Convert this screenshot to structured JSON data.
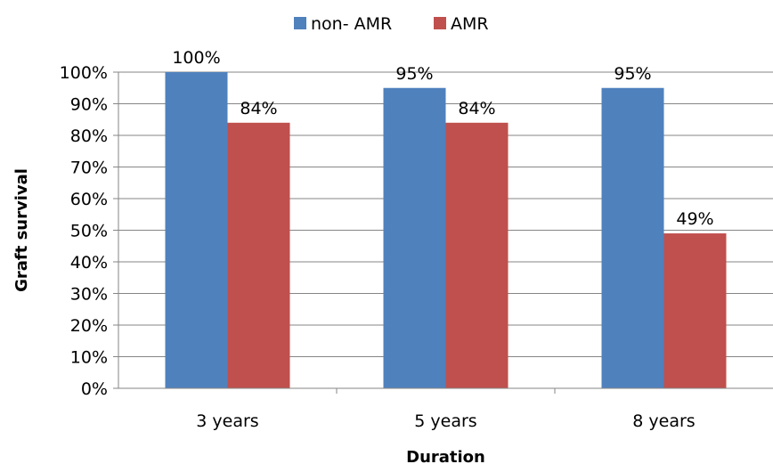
{
  "chart_data": {
    "type": "bar",
    "categories": [
      "3 years",
      "5 years",
      "8 years"
    ],
    "series": [
      {
        "name": "non- AMR",
        "color": "#4F81BD",
        "values": [
          100,
          95,
          95
        ],
        "labels": [
          "100%",
          "95%",
          "95%"
        ]
      },
      {
        "name": "AMR",
        "color": "#C0504D",
        "values": [
          84,
          84,
          49
        ],
        "labels": [
          "84%",
          "84%",
          "49%"
        ]
      }
    ],
    "xlabel": "Duration",
    "ylabel": "Graft survival",
    "ylim": [
      0,
      100
    ],
    "y_ticks": [
      "0%",
      "10%",
      "20%",
      "30%",
      "40%",
      "50%",
      "60%",
      "70%",
      "80%",
      "90%",
      "100%"
    ],
    "grid": true,
    "legend_position": "top"
  }
}
